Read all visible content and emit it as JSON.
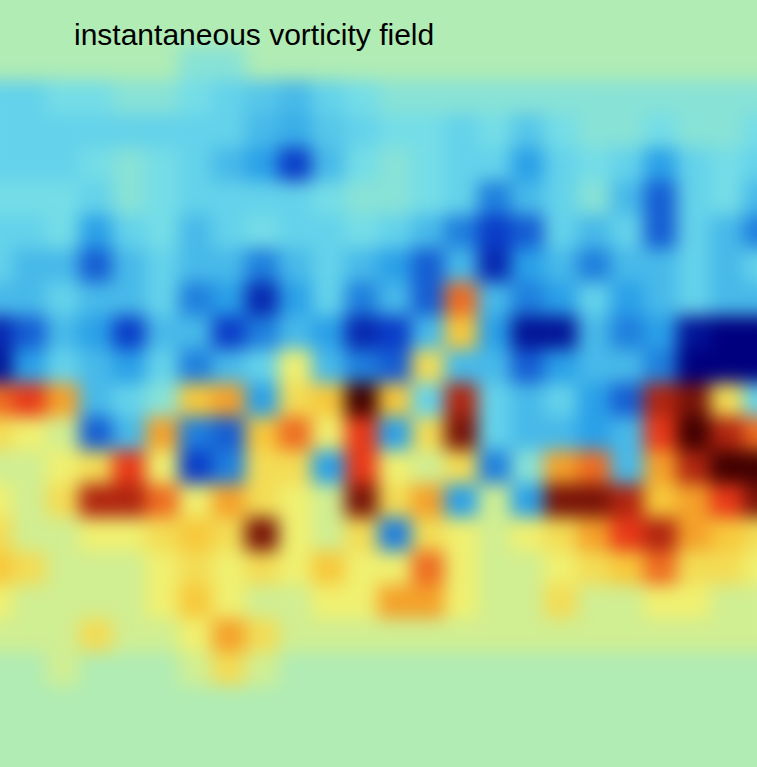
{
  "chart_data": {
    "type": "heatmap",
    "title": "instantaneous vorticity field",
    "tick_labels": false,
    "color_range": [
      -1,
      1
    ],
    "cells": [
      [
        0,
        0,
        0,
        0,
        0,
        0,
        0,
        0,
        0,
        0,
        0,
        0,
        0,
        0,
        0,
        0,
        0,
        0,
        0,
        0,
        0,
        0,
        0,
        0
      ],
      [
        0,
        0,
        0,
        0,
        0,
        0,
        0,
        0,
        0,
        0,
        0,
        0,
        0,
        0,
        0,
        0,
        0,
        0,
        0,
        0,
        0,
        0,
        0,
        0
      ],
      [
        0,
        0,
        0,
        0,
        0,
        0,
        -0.1,
        -0.1,
        0,
        0,
        0,
        0,
        0,
        0,
        0,
        0,
        0,
        0,
        0,
        0,
        0,
        0,
        0,
        0
      ],
      [
        -0.2,
        -0.2,
        -0.15,
        -0.15,
        -0.1,
        -0.1,
        -0.15,
        -0.2,
        -0.25,
        -0.3,
        -0.2,
        -0.15,
        -0.1,
        -0.1,
        -0.1,
        -0.1,
        -0.1,
        -0.1,
        -0.1,
        -0.1,
        -0.1,
        -0.1,
        -0.1,
        -0.1
      ],
      [
        -0.2,
        -0.2,
        -0.2,
        -0.2,
        -0.2,
        -0.2,
        -0.2,
        -0.2,
        -0.3,
        -0.35,
        -0.25,
        -0.2,
        -0.15,
        -0.15,
        -0.2,
        -0.15,
        -0.25,
        -0.15,
        -0.1,
        -0.1,
        -0.15,
        -0.1,
        -0.1,
        -0.15
      ],
      [
        -0.2,
        -0.2,
        -0.2,
        -0.15,
        -0.1,
        -0.15,
        -0.2,
        -0.3,
        -0.4,
        -0.7,
        -0.3,
        -0.15,
        -0.1,
        -0.15,
        -0.2,
        -0.2,
        -0.4,
        -0.2,
        -0.15,
        -0.2,
        -0.4,
        -0.2,
        -0.15,
        -0.2
      ],
      [
        -0.15,
        -0.15,
        -0.15,
        -0.2,
        -0.1,
        -0.15,
        -0.2,
        -0.2,
        -0.2,
        -0.2,
        -0.15,
        -0.1,
        -0.1,
        -0.15,
        -0.2,
        -0.5,
        -0.3,
        -0.2,
        -0.1,
        -0.3,
        -0.6,
        -0.2,
        -0.15,
        -0.3
      ],
      [
        -0.2,
        -0.2,
        -0.15,
        -0.4,
        -0.2,
        -0.15,
        -0.3,
        -0.2,
        -0.15,
        -0.2,
        -0.2,
        -0.15,
        -0.2,
        -0.3,
        -0.5,
        -0.7,
        -0.6,
        -0.2,
        -0.3,
        -0.2,
        -0.6,
        -0.2,
        -0.3,
        -0.5
      ],
      [
        -0.2,
        -0.3,
        -0.3,
        -0.6,
        -0.3,
        -0.2,
        -0.3,
        -0.3,
        -0.5,
        -0.3,
        -0.2,
        -0.3,
        -0.4,
        -0.6,
        -0.3,
        -0.8,
        -0.4,
        -0.3,
        -0.5,
        -0.3,
        -0.3,
        -0.2,
        -0.3,
        -0.2
      ],
      [
        -0.3,
        -0.3,
        -0.2,
        -0.3,
        -0.3,
        -0.2,
        -0.5,
        -0.4,
        -0.8,
        -0.4,
        -0.2,
        -0.5,
        -0.3,
        -0.6,
        0.6,
        -0.3,
        -0.5,
        -0.4,
        -0.2,
        -0.4,
        -0.3,
        -0.2,
        -0.3,
        -0.3
      ],
      [
        -0.8,
        -0.6,
        -0.3,
        -0.4,
        -0.7,
        -0.3,
        -0.3,
        -0.7,
        -0.5,
        -0.3,
        -0.4,
        -0.8,
        -0.7,
        -0.3,
        0.4,
        -0.4,
        -0.9,
        -0.9,
        -0.3,
        -0.5,
        -0.4,
        -0.9,
        -1,
        -1
      ],
      [
        -0.9,
        -0.4,
        -0.2,
        -0.3,
        -0.4,
        -0.2,
        -0.5,
        -0.3,
        -0.2,
        0.2,
        -0.3,
        -0.5,
        -0.6,
        0.3,
        -0.3,
        -0.3,
        -0.6,
        -0.4,
        -0.3,
        -0.3,
        -0.5,
        -1,
        -1,
        -1
      ],
      [
        0.6,
        0.7,
        0.5,
        -0.3,
        -0.2,
        -0.1,
        0.4,
        0.5,
        -0.4,
        0.3,
        0.4,
        1,
        0.4,
        -0.2,
        0.8,
        -0.2,
        -0.3,
        -0.2,
        -0.4,
        -0.6,
        0.8,
        0.9,
        0.3,
        -0.2
      ],
      [
        0.3,
        0.2,
        0.1,
        -0.6,
        -0.3,
        0.5,
        -0.5,
        -0.6,
        0.4,
        0.6,
        0.2,
        0.7,
        -0.4,
        0.3,
        0.9,
        -0.2,
        -0.3,
        -0.3,
        -0.4,
        -0.3,
        0.7,
        1,
        0.8,
        0.6
      ],
      [
        0.1,
        0.1,
        0.2,
        0.3,
        0.7,
        0.2,
        -0.7,
        -0.5,
        0.3,
        0.3,
        -0.4,
        0.7,
        0.2,
        0.1,
        0.3,
        -0.5,
        -0.1,
        0.5,
        0.6,
        -0.3,
        0.5,
        0.8,
        1,
        1
      ],
      [
        0.2,
        0.1,
        0.3,
        0.8,
        0.8,
        0.6,
        0.2,
        0.5,
        0.3,
        0.2,
        0.1,
        0.9,
        0.3,
        0.5,
        -0.4,
        0.1,
        -0.4,
        0.9,
        0.9,
        0.8,
        0.4,
        0.5,
        0.7,
        0.9
      ],
      [
        0.3,
        0.1,
        0.1,
        0.2,
        0.2,
        0.3,
        0.4,
        0.3,
        0.9,
        0.2,
        0.1,
        0.3,
        -0.5,
        0.3,
        0.2,
        0.1,
        0.2,
        0.3,
        0.5,
        0.7,
        0.8,
        0.5,
        0.4,
        0.3
      ],
      [
        0.4,
        0.3,
        0.1,
        0.1,
        0.1,
        0.2,
        0.3,
        0.2,
        0.3,
        0.2,
        0.4,
        0.2,
        0.2,
        0.6,
        0.2,
        0.1,
        0.1,
        0.2,
        0.3,
        0.4,
        0.6,
        0.3,
        0.3,
        0.2
      ],
      [
        0.2,
        0.1,
        0.1,
        0.1,
        0.1,
        0.2,
        0.4,
        0.2,
        0.1,
        0.1,
        0.2,
        0.2,
        0.5,
        0.5,
        0.2,
        0.1,
        0.1,
        0.3,
        0.1,
        0.1,
        0.2,
        0.2,
        0.1,
        0.1
      ],
      [
        0.1,
        0.1,
        0.1,
        0.3,
        0.1,
        0.1,
        0.2,
        0.5,
        0.3,
        0.1,
        0.1,
        0.1,
        0.1,
        0.1,
        0.1,
        0.1,
        0.1,
        0.1,
        0.1,
        0.1,
        0.1,
        0.1,
        0.1,
        0.1
      ],
      [
        0,
        0,
        0.1,
        0,
        0,
        0,
        0.1,
        0.3,
        0.1,
        0,
        0,
        0,
        0,
        0,
        0,
        0,
        0,
        0,
        0,
        0,
        0,
        0,
        0,
        0
      ],
      [
        0,
        0,
        0,
        0,
        0,
        0,
        0,
        0,
        0,
        0,
        0,
        0,
        0,
        0,
        0,
        0,
        0,
        0,
        0,
        0,
        0,
        0,
        0,
        0
      ],
      [
        0,
        0,
        0,
        0,
        0,
        0,
        0,
        0,
        0,
        0,
        0,
        0,
        0,
        0,
        0,
        0,
        0,
        0,
        0,
        0,
        0,
        0,
        0,
        0
      ],
      [
        0,
        0,
        0,
        0,
        0,
        0,
        0,
        0,
        0,
        0,
        0,
        0,
        0,
        0,
        0,
        0,
        0,
        0,
        0,
        0,
        0,
        0,
        0,
        0
      ]
    ]
  }
}
